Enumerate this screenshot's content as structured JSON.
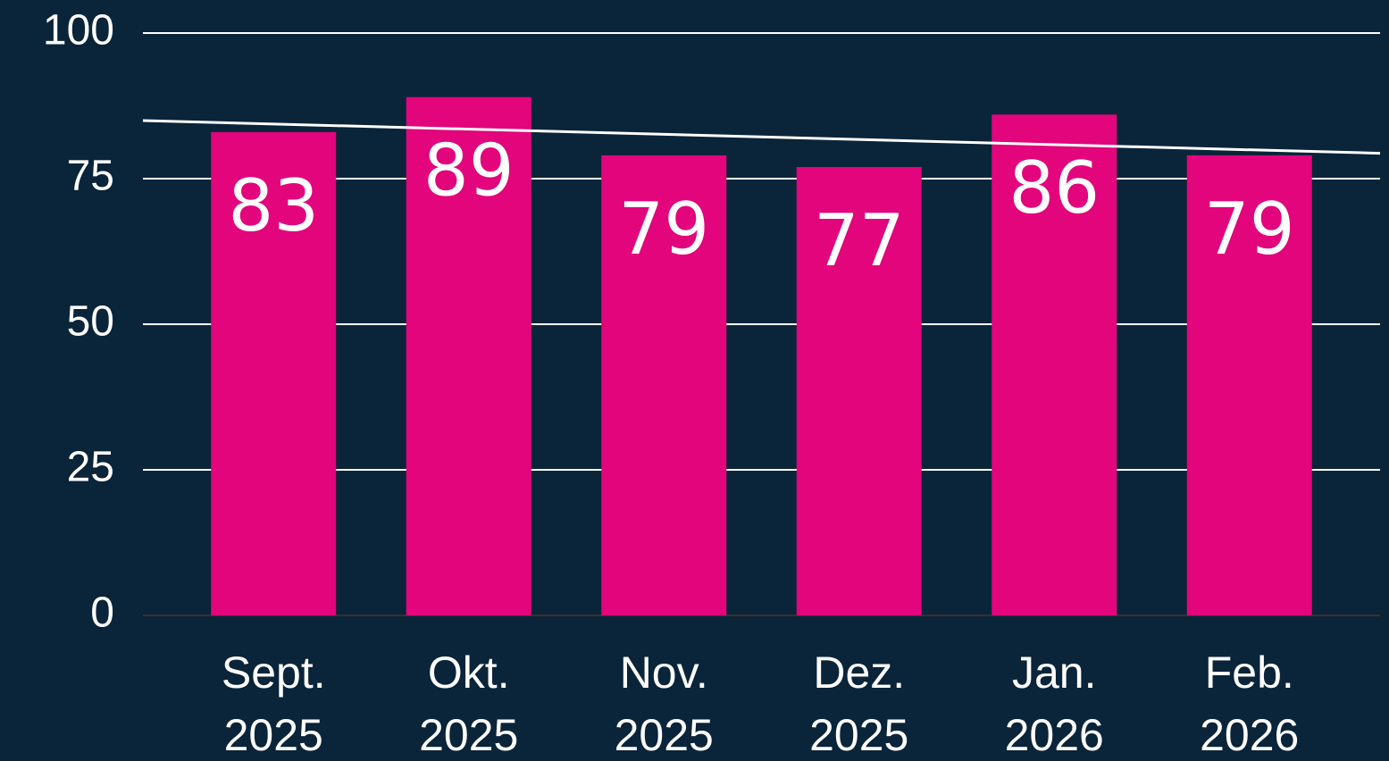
{
  "chart_data": {
    "type": "bar",
    "categories": [
      [
        "Sept.",
        "2025"
      ],
      [
        "Okt.",
        "2025"
      ],
      [
        "Nov.",
        "2025"
      ],
      [
        "Dez.",
        "2025"
      ],
      [
        "Jan.",
        "2026"
      ],
      [
        "Feb.",
        "2026"
      ]
    ],
    "values": [
      83,
      89,
      79,
      77,
      86,
      79
    ],
    "color": "#e2057b",
    "ylim": [
      0,
      100
    ],
    "yticks": [
      0,
      25,
      50,
      75,
      100
    ],
    "grid": true,
    "trendline": "linear",
    "trendline_color": "#ffffff",
    "background": "#0a2439"
  }
}
